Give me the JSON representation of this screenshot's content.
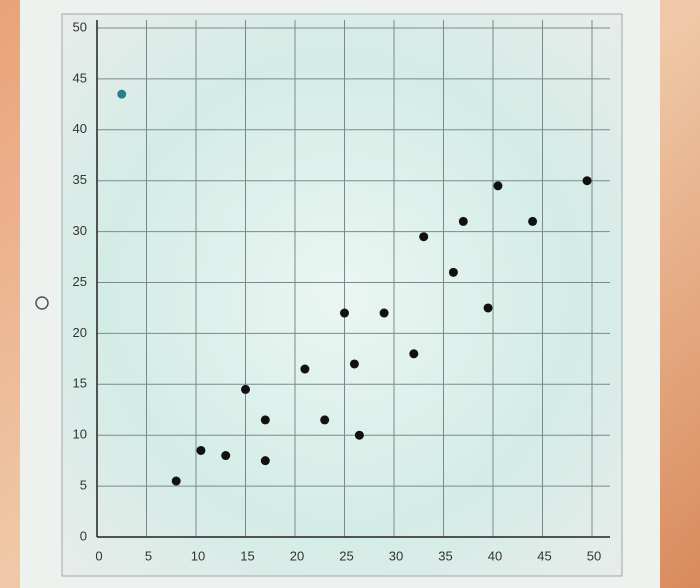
{
  "chart_data": {
    "type": "scatter",
    "xlim": [
      0,
      50
    ],
    "ylim": [
      0,
      50
    ],
    "xticks": [
      0,
      5,
      10,
      15,
      20,
      25,
      30,
      35,
      40,
      45,
      50
    ],
    "yticks": [
      0,
      5,
      10,
      15,
      20,
      25,
      30,
      35,
      40,
      45,
      50
    ],
    "grid": true,
    "series": [
      {
        "color": "#2a7f8f",
        "x": [
          2.5
        ],
        "y": [
          43.5
        ]
      },
      {
        "color": "#111111",
        "x": [
          8,
          10.5,
          13,
          15,
          17,
          17,
          21,
          23,
          25,
          26,
          26.5,
          29,
          32,
          33,
          36,
          37,
          39.5,
          40.5,
          44,
          49.5
        ],
        "y": [
          5.5,
          8.5,
          8,
          14.5,
          7.5,
          11.5,
          16.5,
          11.5,
          22,
          17,
          10,
          22,
          18,
          29.5,
          26,
          31,
          22.5,
          34.5,
          31,
          35
        ]
      }
    ]
  }
}
